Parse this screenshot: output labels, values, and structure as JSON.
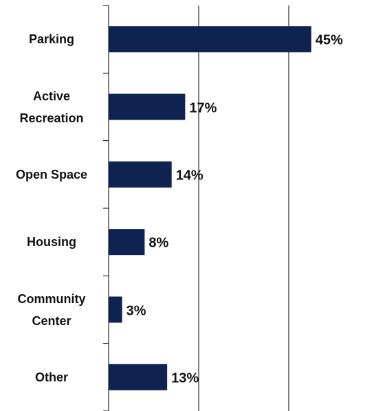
{
  "chart_data": {
    "type": "bar",
    "orientation": "horizontal",
    "categories": [
      "Parking",
      "Active\nRecreation",
      "Open Space",
      "Housing",
      "Community\nCenter",
      "Other"
    ],
    "values": [
      45,
      17,
      14,
      8,
      3,
      13
    ],
    "value_labels": [
      "45%",
      "17%",
      "14%",
      "8%",
      "3%",
      "13%"
    ],
    "color": "#0f2350",
    "xlim": [
      0,
      60
    ],
    "xticks": [
      0,
      20,
      40
    ],
    "grid": true
  }
}
